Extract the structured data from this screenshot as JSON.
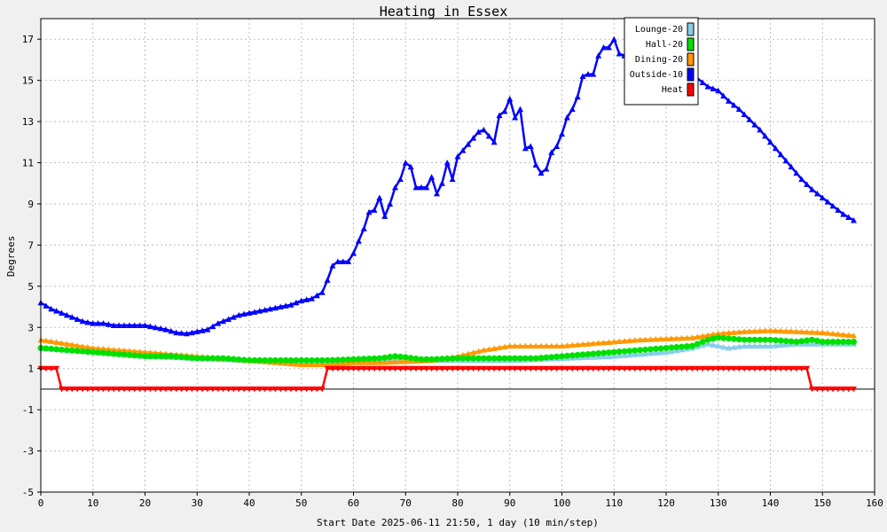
{
  "chart_data": {
    "type": "line",
    "title": "Heating in Essex",
    "xlabel": "Start Date 2025-06-11 21:50, 1 day (10 min/step)",
    "ylabel": "Degrees",
    "xlim": [
      0,
      160
    ],
    "ylim": [
      -5,
      18
    ],
    "x_ticks": [
      0,
      10,
      20,
      30,
      40,
      50,
      60,
      70,
      80,
      90,
      100,
      110,
      120,
      130,
      140,
      150,
      160
    ],
    "y_ticks": [
      -5,
      -3,
      -1,
      1,
      3,
      5,
      7,
      9,
      11,
      13,
      15,
      17
    ],
    "grid": true,
    "legend_position": "top-right",
    "series": [
      {
        "name": "Lounge-20",
        "color": "#87ceeb",
        "marker": "triangle",
        "points": [
          [
            0,
            2.0
          ],
          [
            10,
            1.8
          ],
          [
            20,
            1.6
          ],
          [
            30,
            1.5
          ],
          [
            40,
            1.4
          ],
          [
            50,
            1.3
          ],
          [
            55,
            1.4
          ],
          [
            60,
            1.4
          ],
          [
            65,
            1.4
          ],
          [
            70,
            1.5
          ],
          [
            75,
            1.4
          ],
          [
            80,
            1.4
          ],
          [
            90,
            1.4
          ],
          [
            100,
            1.5
          ],
          [
            110,
            1.6
          ],
          [
            120,
            1.8
          ],
          [
            125,
            2.0
          ],
          [
            128,
            2.2
          ],
          [
            130,
            2.1
          ],
          [
            132,
            2.0
          ],
          [
            135,
            2.1
          ],
          [
            140,
            2.1
          ],
          [
            145,
            2.2
          ],
          [
            150,
            2.2
          ],
          [
            156,
            2.2
          ]
        ]
      },
      {
        "name": "Hall-20",
        "color": "#00e000",
        "marker": "circle",
        "points": [
          [
            0,
            2.0
          ],
          [
            5,
            1.9
          ],
          [
            10,
            1.8
          ],
          [
            15,
            1.7
          ],
          [
            20,
            1.6
          ],
          [
            25,
            1.6
          ],
          [
            30,
            1.5
          ],
          [
            35,
            1.5
          ],
          [
            40,
            1.4
          ],
          [
            45,
            1.4
          ],
          [
            50,
            1.4
          ],
          [
            55,
            1.4
          ],
          [
            60,
            1.45
          ],
          [
            65,
            1.5
          ],
          [
            68,
            1.6
          ],
          [
            70,
            1.55
          ],
          [
            73,
            1.45
          ],
          [
            75,
            1.45
          ],
          [
            80,
            1.5
          ],
          [
            85,
            1.5
          ],
          [
            90,
            1.5
          ],
          [
            95,
            1.5
          ],
          [
            100,
            1.6
          ],
          [
            105,
            1.7
          ],
          [
            110,
            1.8
          ],
          [
            115,
            1.9
          ],
          [
            120,
            2.0
          ],
          [
            125,
            2.1
          ],
          [
            128,
            2.4
          ],
          [
            130,
            2.5
          ],
          [
            135,
            2.4
          ],
          [
            140,
            2.4
          ],
          [
            145,
            2.3
          ],
          [
            148,
            2.4
          ],
          [
            150,
            2.3
          ],
          [
            156,
            2.3
          ]
        ]
      },
      {
        "name": "Dining-20",
        "color": "#ff9900",
        "marker": "triangle",
        "points": [
          [
            0,
            2.4
          ],
          [
            5,
            2.2
          ],
          [
            10,
            2.0
          ],
          [
            15,
            1.9
          ],
          [
            20,
            1.8
          ],
          [
            25,
            1.7
          ],
          [
            30,
            1.6
          ],
          [
            35,
            1.5
          ],
          [
            40,
            1.4
          ],
          [
            45,
            1.3
          ],
          [
            50,
            1.2
          ],
          [
            55,
            1.2
          ],
          [
            60,
            1.3
          ],
          [
            65,
            1.3
          ],
          [
            70,
            1.35
          ],
          [
            75,
            1.4
          ],
          [
            80,
            1.6
          ],
          [
            85,
            1.9
          ],
          [
            90,
            2.1
          ],
          [
            95,
            2.1
          ],
          [
            100,
            2.1
          ],
          [
            105,
            2.2
          ],
          [
            110,
            2.3
          ],
          [
            115,
            2.4
          ],
          [
            120,
            2.45
          ],
          [
            125,
            2.5
          ],
          [
            130,
            2.7
          ],
          [
            135,
            2.8
          ],
          [
            140,
            2.85
          ],
          [
            145,
            2.8
          ],
          [
            150,
            2.75
          ],
          [
            156,
            2.6
          ]
        ]
      },
      {
        "name": "Outside-10",
        "color": "#0000ff",
        "marker": "triangle",
        "points": [
          [
            0,
            4.2
          ],
          [
            2,
            3.9
          ],
          [
            4,
            3.7
          ],
          [
            6,
            3.5
          ],
          [
            8,
            3.3
          ],
          [
            10,
            3.2
          ],
          [
            12,
            3.2
          ],
          [
            14,
            3.1
          ],
          [
            16,
            3.1
          ],
          [
            18,
            3.1
          ],
          [
            20,
            3.1
          ],
          [
            22,
            3.0
          ],
          [
            24,
            2.9
          ],
          [
            26,
            2.75
          ],
          [
            28,
            2.7
          ],
          [
            30,
            2.8
          ],
          [
            32,
            2.9
          ],
          [
            34,
            3.2
          ],
          [
            36,
            3.4
          ],
          [
            38,
            3.6
          ],
          [
            40,
            3.7
          ],
          [
            42,
            3.8
          ],
          [
            44,
            3.9
          ],
          [
            46,
            4.0
          ],
          [
            48,
            4.1
          ],
          [
            50,
            4.3
          ],
          [
            52,
            4.4
          ],
          [
            54,
            4.7
          ],
          [
            55,
            5.3
          ],
          [
            56,
            6.0
          ],
          [
            57,
            6.2
          ],
          [
            59,
            6.2
          ],
          [
            60,
            6.6
          ],
          [
            61,
            7.2
          ],
          [
            62,
            7.8
          ],
          [
            63,
            8.6
          ],
          [
            64,
            8.7
          ],
          [
            65,
            9.3
          ],
          [
            66,
            8.4
          ],
          [
            67,
            9.0
          ],
          [
            68,
            9.8
          ],
          [
            69,
            10.2
          ],
          [
            70,
            11.0
          ],
          [
            71,
            10.8
          ],
          [
            72,
            9.8
          ],
          [
            74,
            9.8
          ],
          [
            75,
            10.3
          ],
          [
            76,
            9.5
          ],
          [
            77,
            10.0
          ],
          [
            78,
            11.0
          ],
          [
            79,
            10.2
          ],
          [
            80,
            11.3
          ],
          [
            81,
            11.6
          ],
          [
            82,
            11.9
          ],
          [
            83,
            12.2
          ],
          [
            84,
            12.5
          ],
          [
            85,
            12.6
          ],
          [
            86,
            12.3
          ],
          [
            87,
            12.0
          ],
          [
            88,
            13.3
          ],
          [
            89,
            13.5
          ],
          [
            90,
            14.1
          ],
          [
            91,
            13.2
          ],
          [
            92,
            13.6
          ],
          [
            93,
            11.7
          ],
          [
            94,
            11.8
          ],
          [
            95,
            10.9
          ],
          [
            96,
            10.5
          ],
          [
            97,
            10.7
          ],
          [
            98,
            11.5
          ],
          [
            99,
            11.8
          ],
          [
            100,
            12.4
          ],
          [
            101,
            13.2
          ],
          [
            102,
            13.6
          ],
          [
            103,
            14.2
          ],
          [
            104,
            15.2
          ],
          [
            105,
            15.3
          ],
          [
            106,
            15.3
          ],
          [
            107,
            16.2
          ],
          [
            108,
            16.6
          ],
          [
            109,
            16.6
          ],
          [
            110,
            17.0
          ],
          [
            111,
            16.3
          ],
          [
            112,
            16.2
          ],
          [
            113,
            16.6
          ],
          [
            126,
            15.1
          ],
          [
            128,
            14.7
          ],
          [
            130,
            14.5
          ],
          [
            132,
            14.0
          ],
          [
            134,
            13.6
          ],
          [
            136,
            13.1
          ],
          [
            138,
            12.6
          ],
          [
            140,
            12.0
          ],
          [
            142,
            11.4
          ],
          [
            144,
            10.8
          ],
          [
            146,
            10.2
          ],
          [
            148,
            9.7
          ],
          [
            150,
            9.3
          ],
          [
            152,
            8.9
          ],
          [
            154,
            8.5
          ],
          [
            156,
            8.2
          ]
        ]
      },
      {
        "name": "Heat",
        "color": "#ff0000",
        "marker": "triangle-down",
        "points": [
          [
            0,
            1
          ],
          [
            3,
            1
          ],
          [
            4,
            0
          ],
          [
            50,
            0
          ],
          [
            54,
            0
          ],
          [
            55,
            1
          ],
          [
            60,
            1
          ],
          [
            100,
            1
          ],
          [
            140,
            1
          ],
          [
            147,
            1
          ],
          [
            148,
            0
          ],
          [
            156,
            0
          ]
        ]
      }
    ]
  }
}
